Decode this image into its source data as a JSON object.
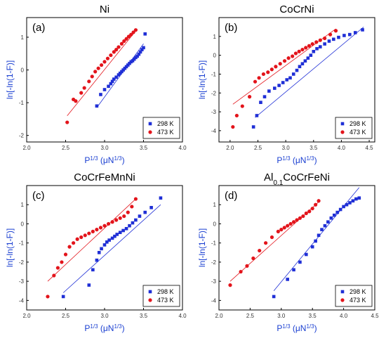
{
  "colors": {
    "series_298": "#1f2fd6",
    "series_473": "#e3141b",
    "axis_title": "#1a3fd1"
  },
  "chart_data": [
    {
      "type": "scatter",
      "panel_label": "(a)",
      "title": "Ni",
      "xlabel": "P1/3 (μN1/3)",
      "ylabel": "ln[-ln(1-F)]",
      "xlim": [
        2.0,
        4.0
      ],
      "ylim": [
        -2.2,
        1.6
      ],
      "xticks": [
        2.0,
        2.5,
        3.0,
        3.5,
        4.0
      ],
      "xticklabels": [
        "2.0",
        "2.5",
        "3.0",
        "3.5",
        "4.0"
      ],
      "yticks": [
        -2,
        -1,
        0,
        1
      ],
      "yticklabels": [
        "-2",
        "-1",
        "0",
        "1"
      ],
      "legend_position": "bottom-right",
      "series": [
        {
          "name": "298 K",
          "marker": "square",
          "color": "#1f2fd6",
          "x": [
            2.9,
            2.95,
            3.0,
            3.05,
            3.08,
            3.1,
            3.12,
            3.15,
            3.18,
            3.2,
            3.22,
            3.24,
            3.26,
            3.28,
            3.3,
            3.32,
            3.34,
            3.36,
            3.38,
            3.4,
            3.42,
            3.44,
            3.46,
            3.48,
            3.5,
            3.52
          ],
          "y": [
            -1.1,
            -0.75,
            -0.6,
            -0.5,
            -0.42,
            -0.35,
            -0.28,
            -0.22,
            -0.15,
            -0.1,
            -0.05,
            0.0,
            0.05,
            0.1,
            0.15,
            0.2,
            0.25,
            0.28,
            0.33,
            0.38,
            0.42,
            0.48,
            0.55,
            0.62,
            0.68,
            1.1
          ]
        },
        {
          "name": "473 K",
          "marker": "circle",
          "color": "#e3141b",
          "x": [
            2.52,
            2.6,
            2.63,
            2.7,
            2.74,
            2.8,
            2.84,
            2.88,
            2.92,
            2.96,
            3.0,
            3.04,
            3.08,
            3.12,
            3.15,
            3.18,
            3.22,
            3.25,
            3.28,
            3.31,
            3.34,
            3.37,
            3.4
          ],
          "y": [
            -1.6,
            -0.9,
            -0.95,
            -0.7,
            -0.55,
            -0.35,
            -0.2,
            -0.05,
            0.05,
            0.15,
            0.25,
            0.35,
            0.45,
            0.55,
            0.62,
            0.7,
            0.8,
            0.88,
            0.95,
            1.02,
            1.08,
            1.15,
            1.22
          ]
        }
      ],
      "fit_lines": [
        {
          "series": "298 K",
          "x": [
            2.9,
            3.5
          ],
          "y": [
            -1.15,
            0.8
          ]
        },
        {
          "series": "473 K",
          "x": [
            2.52,
            3.42
          ],
          "y": [
            -1.4,
            1.25
          ]
        }
      ]
    },
    {
      "type": "scatter",
      "panel_label": "(b)",
      "title": "CoCrNi",
      "xlabel": "P1/3 (μN1/3)",
      "ylabel": "ln[-ln(1-F)]",
      "xlim": [
        1.8,
        4.6
      ],
      "ylim": [
        -4.6,
        2.0
      ],
      "xticks": [
        2.0,
        2.5,
        3.0,
        3.5,
        4.0,
        4.5
      ],
      "xticklabels": [
        "2.0",
        "2.5",
        "3.0",
        "3.5",
        "4.0",
        "4.5"
      ],
      "yticks": [
        -4,
        -3,
        -2,
        -1,
        0,
        1
      ],
      "yticklabels": [
        "-4",
        "-3",
        "-2",
        "-1",
        "0",
        "1"
      ],
      "legend_position": "bottom-right",
      "series": [
        {
          "name": "298 K",
          "marker": "square",
          "color": "#1f2fd6",
          "x": [
            2.42,
            2.48,
            2.55,
            2.62,
            2.7,
            2.8,
            2.88,
            2.95,
            3.02,
            3.08,
            3.14,
            3.2,
            3.25,
            3.3,
            3.35,
            3.4,
            3.45,
            3.5,
            3.56,
            3.62,
            3.7,
            3.78,
            3.86,
            3.95,
            4.05,
            4.15,
            4.25,
            4.38
          ],
          "y": [
            -3.8,
            -3.2,
            -2.5,
            -2.2,
            -1.9,
            -1.75,
            -1.6,
            -1.45,
            -1.3,
            -1.2,
            -1.0,
            -0.8,
            -0.6,
            -0.45,
            -0.3,
            -0.15,
            0.0,
            0.2,
            0.35,
            0.45,
            0.6,
            0.75,
            0.85,
            0.95,
            1.05,
            1.1,
            1.2,
            1.35
          ]
        },
        {
          "name": "473 K",
          "marker": "circle",
          "color": "#e3141b",
          "x": [
            2.05,
            2.12,
            2.22,
            2.35,
            2.45,
            2.52,
            2.6,
            2.68,
            2.75,
            2.82,
            2.9,
            2.98,
            3.05,
            3.12,
            3.18,
            3.24,
            3.3,
            3.36,
            3.42,
            3.48,
            3.55,
            3.62,
            3.7,
            3.8,
            3.9
          ],
          "y": [
            -3.8,
            -3.2,
            -2.7,
            -2.2,
            -1.4,
            -1.2,
            -1.0,
            -0.9,
            -0.75,
            -0.6,
            -0.45,
            -0.3,
            -0.15,
            -0.05,
            0.1,
            0.2,
            0.3,
            0.4,
            0.5,
            0.6,
            0.7,
            0.8,
            0.9,
            1.1,
            1.3
          ]
        }
      ],
      "fit_lines": [
        {
          "series": "298 K",
          "x": [
            2.45,
            4.4
          ],
          "y": [
            -3.3,
            1.5
          ]
        },
        {
          "series": "473 K",
          "x": [
            2.05,
            3.9
          ],
          "y": [
            -2.6,
            1.4
          ]
        }
      ]
    },
    {
      "type": "scatter",
      "panel_label": "(c)",
      "title": "CoCrFeMnNi",
      "xlabel": "P1/3 (μN1/3)",
      "ylabel": "ln[-ln(1-F)]",
      "xlim": [
        2.0,
        4.0
      ],
      "ylim": [
        -4.5,
        2.0
      ],
      "xticks": [
        2.0,
        2.5,
        3.0,
        3.5,
        4.0
      ],
      "xticklabels": [
        "2.0",
        "2.5",
        "3.0",
        "3.5",
        "4.0"
      ],
      "yticks": [
        -4,
        -3,
        -2,
        -1,
        0,
        1
      ],
      "yticklabels": [
        "-4",
        "-3",
        "-2",
        "-1",
        "0",
        "1"
      ],
      "legend_position": "bottom-right",
      "series": [
        {
          "name": "298 K",
          "marker": "square",
          "color": "#1f2fd6",
          "x": [
            2.47,
            2.8,
            2.85,
            2.9,
            2.93,
            2.96,
            3.0,
            3.03,
            3.06,
            3.1,
            3.13,
            3.16,
            3.2,
            3.24,
            3.28,
            3.32,
            3.36,
            3.4,
            3.45,
            3.52,
            3.6,
            3.72
          ],
          "y": [
            -3.8,
            -3.2,
            -2.4,
            -1.9,
            -1.5,
            -1.3,
            -1.1,
            -0.95,
            -0.85,
            -0.75,
            -0.65,
            -0.55,
            -0.45,
            -0.35,
            -0.25,
            -0.1,
            0.05,
            0.2,
            0.4,
            0.6,
            0.85,
            1.35
          ]
        },
        {
          "name": "473 K",
          "marker": "circle",
          "color": "#e3141b",
          "x": [
            2.27,
            2.35,
            2.4,
            2.45,
            2.5,
            2.55,
            2.6,
            2.65,
            2.7,
            2.75,
            2.8,
            2.85,
            2.9,
            2.95,
            3.0,
            3.05,
            3.1,
            3.15,
            3.2,
            3.25,
            3.3,
            3.35,
            3.4
          ],
          "y": [
            -3.8,
            -2.7,
            -2.3,
            -2.0,
            -1.6,
            -1.2,
            -1.0,
            -0.8,
            -0.7,
            -0.6,
            -0.5,
            -0.4,
            -0.3,
            -0.2,
            -0.1,
            0.0,
            0.1,
            0.2,
            0.3,
            0.4,
            0.6,
            0.9,
            1.3
          ]
        }
      ],
      "fit_lines": [
        {
          "series": "298 K",
          "x": [
            2.47,
            3.72
          ],
          "y": [
            -3.6,
            1.0
          ]
        },
        {
          "series": "473 K",
          "x": [
            2.27,
            3.4
          ],
          "y": [
            -3.0,
            1.3
          ]
        }
      ]
    },
    {
      "type": "scatter",
      "panel_label": "(d)",
      "title": "Al0.1CoCrFeNi",
      "xlabel": "P1/3 (μN1/3)",
      "ylabel": "ln[-ln(1-F)]",
      "xlim": [
        2.0,
        4.5
      ],
      "ylim": [
        -4.5,
        2.0
      ],
      "xticks": [
        2.0,
        2.5,
        3.0,
        3.5,
        4.0,
        4.5
      ],
      "xticklabels": [
        "2.0",
        "2.5",
        "3.0",
        "3.5",
        "4.0",
        "4.5"
      ],
      "yticks": [
        -4,
        -3,
        -2,
        -1,
        0,
        1
      ],
      "yticklabels": [
        "-4",
        "-3",
        "-2",
        "-1",
        "0",
        "1"
      ],
      "legend_position": "bottom-right",
      "series": [
        {
          "name": "298 K",
          "marker": "square",
          "color": "#1f2fd6",
          "x": [
            2.88,
            3.1,
            3.2,
            3.3,
            3.4,
            3.5,
            3.55,
            3.6,
            3.65,
            3.7,
            3.75,
            3.8,
            3.85,
            3.9,
            3.95,
            4.0,
            4.05,
            4.1,
            4.15,
            4.2,
            4.25
          ],
          "y": [
            -3.8,
            -2.9,
            -2.4,
            -2.0,
            -1.6,
            -1.2,
            -0.9,
            -0.6,
            -0.3,
            -0.1,
            0.1,
            0.3,
            0.45,
            0.6,
            0.75,
            0.9,
            1.0,
            1.1,
            1.2,
            1.3,
            1.35
          ]
        },
        {
          "name": "473 K",
          "marker": "circle",
          "color": "#e3141b",
          "x": [
            2.18,
            2.35,
            2.45,
            2.55,
            2.65,
            2.75,
            2.85,
            2.95,
            3.0,
            3.05,
            3.1,
            3.15,
            3.2,
            3.25,
            3.3,
            3.35,
            3.4,
            3.45,
            3.5,
            3.55,
            3.6
          ],
          "y": [
            -3.2,
            -2.5,
            -2.2,
            -1.8,
            -1.4,
            -1.0,
            -0.7,
            -0.4,
            -0.3,
            -0.2,
            -0.1,
            0.0,
            0.1,
            0.2,
            0.3,
            0.4,
            0.55,
            0.65,
            0.8,
            1.0,
            1.2
          ]
        }
      ],
      "fit_lines": [
        {
          "series": "298 K",
          "x": [
            2.88,
            4.25
          ],
          "y": [
            -3.5,
            1.9
          ]
        },
        {
          "series": "473 K",
          "x": [
            2.18,
            3.62
          ],
          "y": [
            -3.0,
            1.2
          ]
        }
      ]
    }
  ]
}
